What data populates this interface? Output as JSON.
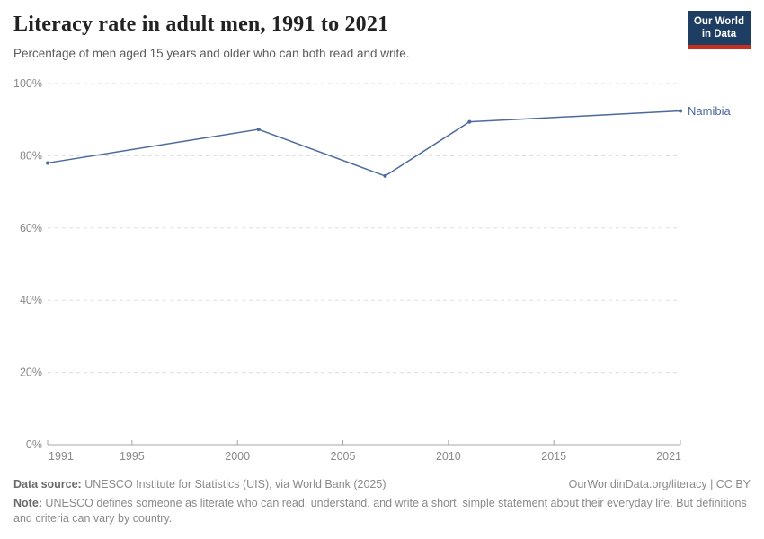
{
  "header": {
    "title": "Literacy rate in adult men, 1991 to 2021",
    "subtitle": "Percentage of men aged 15 years and older who can both read and write.",
    "logo": {
      "line1": "Our World",
      "line2": "in Data"
    }
  },
  "chart_data": {
    "type": "line",
    "series": [
      {
        "name": "Namibia",
        "x": [
          1991,
          2001,
          2007,
          2011,
          2021
        ],
        "values": [
          78.0,
          87.3,
          74.4,
          89.4,
          92.4
        ],
        "color": "#4C6A9C"
      }
    ],
    "end_label": "Namibia",
    "x_ticks": [
      1991,
      1995,
      2000,
      2005,
      2010,
      2015,
      2021
    ],
    "y_ticks": [
      0,
      20,
      40,
      60,
      80,
      100
    ],
    "y_tick_suffix": "%",
    "xlim": [
      1991,
      2021
    ],
    "ylim": [
      0,
      100
    ],
    "grid": "dashed-horizontal",
    "legend_position": "end-of-line"
  },
  "colors": {
    "line": "#4C6A9C",
    "grid": "#dddddd",
    "axis": "#a5a5a5",
    "tick_label": "#8a8a8a",
    "logo_bg": "#1d3d63",
    "logo_red": "#c5301f"
  },
  "footer": {
    "datasource_label": "Data source:",
    "datasource_text": " UNESCO Institute for Statistics (UIS), via World Bank (2025)",
    "link": "OurWorldinData.org/literacy | CC BY",
    "note_label": "Note:",
    "note_text": " UNESCO defines someone as literate who can read, understand, and write a short, simple statement about their everyday life. But definitions and criteria can vary by country."
  }
}
